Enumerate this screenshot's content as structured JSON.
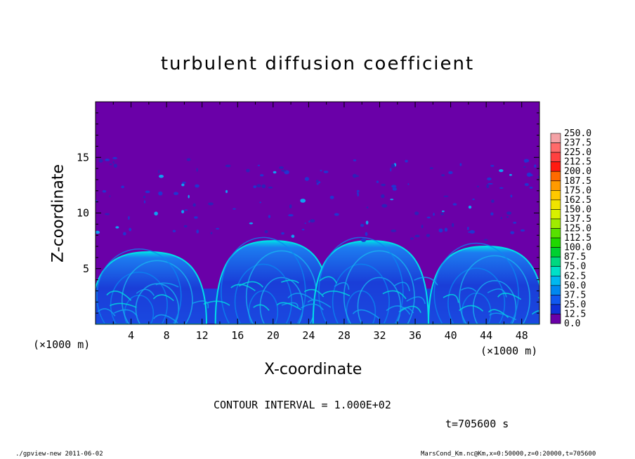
{
  "chart_data": {
    "type": "heatmap",
    "title": "turbulent diffusion coefficient",
    "xlabel": "X-coordinate",
    "ylabel": "Z-coordinate",
    "x_unit": "(×1000 m)",
    "x_unit_right": "(×1000 m)",
    "xlim": [
      0,
      50
    ],
    "ylim": [
      0,
      20
    ],
    "xticks": [
      "4",
      "8",
      "12",
      "16",
      "20",
      "24",
      "28",
      "32",
      "36",
      "40",
      "44",
      "48"
    ],
    "yticks": [
      "5",
      "10",
      "15"
    ],
    "colorbar": {
      "levels": [
        "250.0",
        "237.5",
        "225.0",
        "212.5",
        "200.0",
        "187.5",
        "175.0",
        "162.5",
        "150.0",
        "137.5",
        "125.0",
        "112.5",
        "100.0",
        "87.5",
        "75.0",
        "62.5",
        "50.0",
        "37.5",
        "25.0",
        "12.5",
        "0.0"
      ],
      "colors": [
        "#f4a2a6",
        "#ff6a6a",
        "#ff4040",
        "#ff1a10",
        "#ff6a00",
        "#ff9a00",
        "#ffc800",
        "#f0e400",
        "#d8f000",
        "#a0ec00",
        "#58e000",
        "#20d800",
        "#00d030",
        "#00d880",
        "#00e0c8",
        "#00b8f0",
        "#0088f0",
        "#1058f0",
        "#1030d8",
        "#2818b8",
        "#6a00a8"
      ]
    },
    "background_level": "0.0",
    "plumes": [
      {
        "x_center": 6,
        "top_z": 6.5
      },
      {
        "x_center": 20,
        "top_z": 7.5
      },
      {
        "x_center": 31,
        "top_z": 7.5
      },
      {
        "x_center": 44,
        "top_z": 7.0
      }
    ],
    "annotations": {
      "contour_interval": "CONTOUR INTERVAL = 1.000E+02",
      "time": "t=705600 s",
      "footer_left": "./gpview-new   2011-06-02",
      "footer_right": "MarsCond_Km.nc@Km,x=0:50000,z=0:20000,t=705600"
    }
  }
}
